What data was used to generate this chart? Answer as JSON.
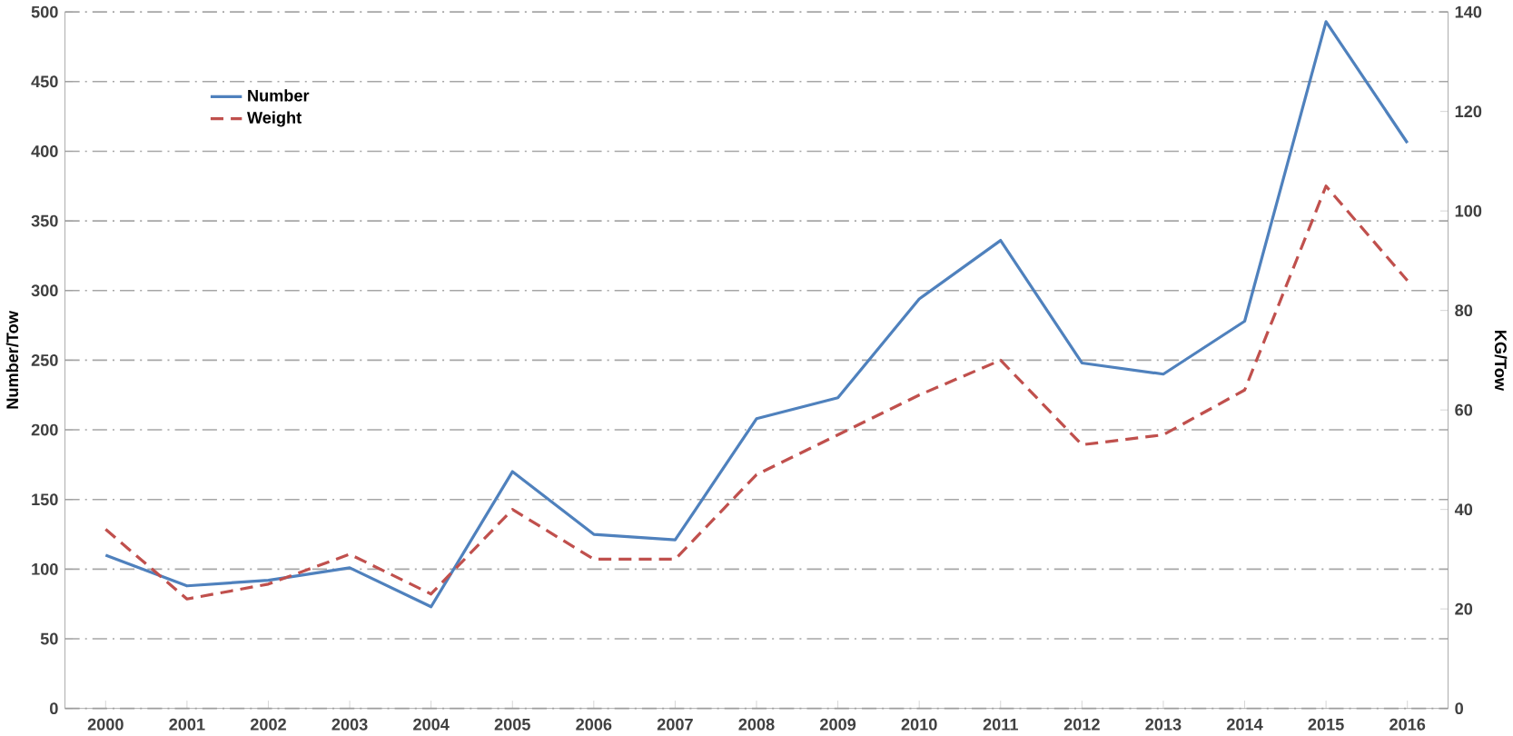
{
  "chart_data": {
    "type": "line",
    "ylabel": "Number/Tow",
    "y2label": "KG/Tow",
    "categories": [
      "2000",
      "2001",
      "2002",
      "2003",
      "2004",
      "2005",
      "2006",
      "2007",
      "2008",
      "2009",
      "2010",
      "2011",
      "2012",
      "2013",
      "2014",
      "2015",
      "2016"
    ],
    "series": [
      {
        "name": "Number",
        "color": "#4f81bd",
        "line_style": "solid",
        "values": [
          110,
          88,
          92,
          101,
          73,
          170,
          125,
          121,
          208,
          223,
          294,
          336,
          248,
          240,
          278,
          493,
          406
        ]
      },
      {
        "name": "Weight",
        "color": "#c0504d",
        "line_style": "dashed",
        "axis": "y2",
        "values": [
          36,
          22,
          25,
          31,
          23,
          40,
          30,
          30,
          47,
          55,
          63,
          70,
          53,
          55,
          64,
          105,
          86
        ]
      }
    ],
    "ylim": [
      0,
      500
    ],
    "yticks": [
      0,
      50,
      100,
      150,
      200,
      250,
      300,
      350,
      400,
      450,
      500
    ],
    "y2lim": [
      0,
      140
    ],
    "y2ticks": [
      0,
      20,
      40,
      60,
      80,
      100,
      120,
      140
    ],
    "grid": "y",
    "legend": "top left",
    "marker": "none"
  }
}
